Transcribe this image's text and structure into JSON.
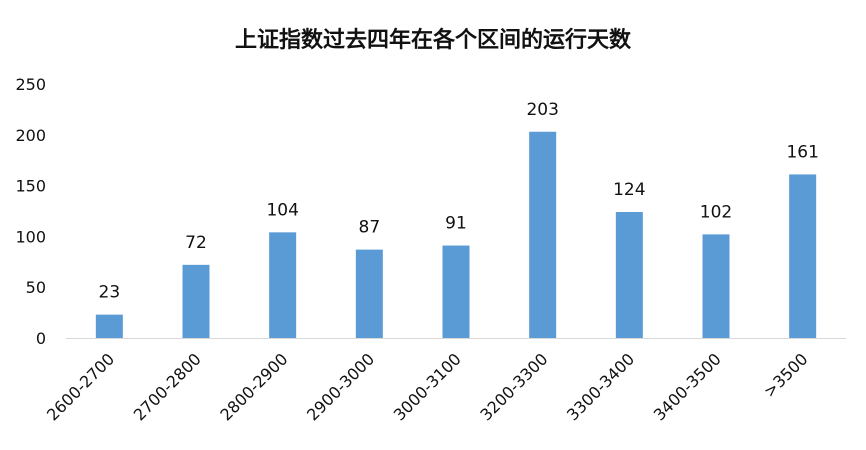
{
  "chart_data": {
    "type": "bar",
    "title": "上证指数过去四年在各个区间的运行天数",
    "xlabel": "",
    "ylabel": "",
    "categories": [
      "2600-2700",
      "2700-2800",
      "2800-2900",
      "2900-3000",
      "3000-3100",
      "3200-3300",
      "3300-3400",
      "3400-3500",
      ">3500"
    ],
    "values": [
      23,
      72,
      104,
      87,
      91,
      203,
      124,
      102,
      161
    ],
    "ylim": [
      0,
      250
    ],
    "yticks": [
      0,
      50,
      100,
      150,
      200,
      250
    ],
    "grid": false,
    "legend": "none",
    "data_labels": true,
    "bar_color": "#5B9BD5"
  }
}
